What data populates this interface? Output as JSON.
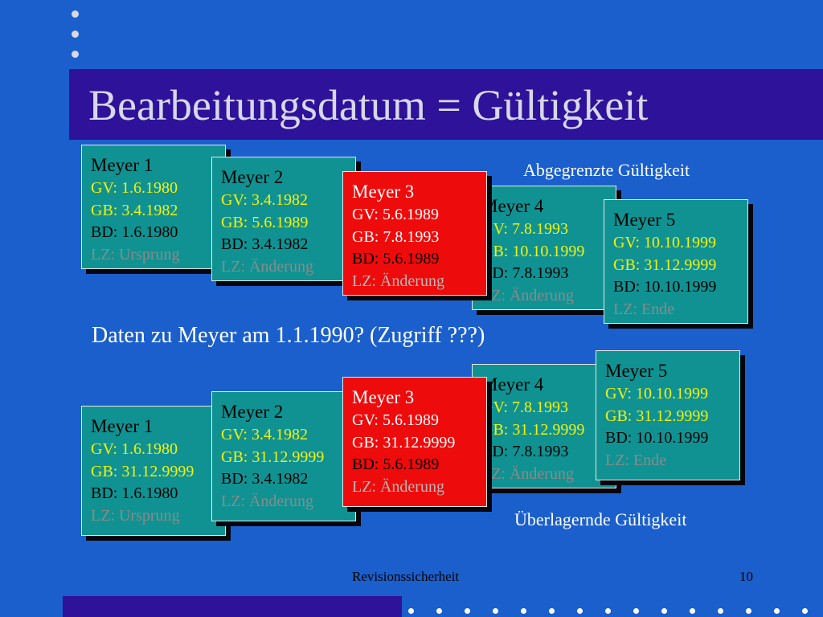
{
  "title": "Bearbeitungsdatum = Gültigkeit",
  "caption_top": "Abgegrenzte Gültigkeit",
  "question": "Daten zu Meyer am 1.1.1990? (Zugriff ???)",
  "caption_bottom": "Überlagernde Gültigkeit",
  "top_cards": [
    {
      "name": "Meyer 1",
      "gv": "GV: 1.6.1980",
      "gb": "GB: 3.4.1982",
      "bd": "BD: 1.6.1980",
      "lz": "LZ: Ursprung"
    },
    {
      "name": "Meyer 2",
      "gv": "GV: 3.4.1982",
      "gb": "GB: 5.6.1989",
      "bd": "BD: 3.4.1982",
      "lz": "LZ: Änderung"
    },
    {
      "name": "Meyer 3",
      "gv": "GV: 5.6.1989",
      "gb": "GB: 7.8.1993",
      "bd": "BD: 5.6.1989",
      "lz": "LZ: Änderung"
    },
    {
      "name": "Meyer 4",
      "gv": "GV: 7.8.1993",
      "gb": "GB: 10.10.1999",
      "bd": "BD: 7.8.1993",
      "lz": "LZ: Änderung"
    },
    {
      "name": "Meyer 5",
      "gv": "GV: 10.10.1999",
      "gb": "GB: 31.12.9999",
      "bd": "BD: 10.10.1999",
      "lz": "LZ: Ende"
    }
  ],
  "bottom_cards": [
    {
      "name": "Meyer 1",
      "gv": "GV: 1.6.1980",
      "gb": "GB: 31.12.9999",
      "bd": "BD: 1.6.1980",
      "lz": "LZ: Ursprung"
    },
    {
      "name": "Meyer 2",
      "gv": "GV: 3.4.1982",
      "gb": "GB: 31.12.9999",
      "bd": "BD: 3.4.1982",
      "lz": "LZ: Änderung"
    },
    {
      "name": "Meyer 3",
      "gv": "GV: 5.6.1989",
      "gb": "GB: 31.12.9999",
      "bd": "BD: 5.6.1989",
      "lz": "LZ: Änderung"
    },
    {
      "name": "Meyer 4",
      "gv": "GV: 7.8.1993",
      "gb": "GB: 31.12.9999",
      "bd": "BD: 7.8.1993",
      "lz": "LZ: Änderung"
    },
    {
      "name": "Meyer 5",
      "gv": "GV: 10.10.1999",
      "gb": "GB: 31.12.9999",
      "bd": "BD: 10.10.1999",
      "lz": "LZ: Ende"
    }
  ],
  "footer": {
    "text": "Revisionssicherheit",
    "page": "10"
  },
  "colors": {
    "background": "#1a5fcc",
    "title_band": "#2e129a",
    "card_teal": "#109292",
    "card_highlight": "#ee0b0b"
  }
}
